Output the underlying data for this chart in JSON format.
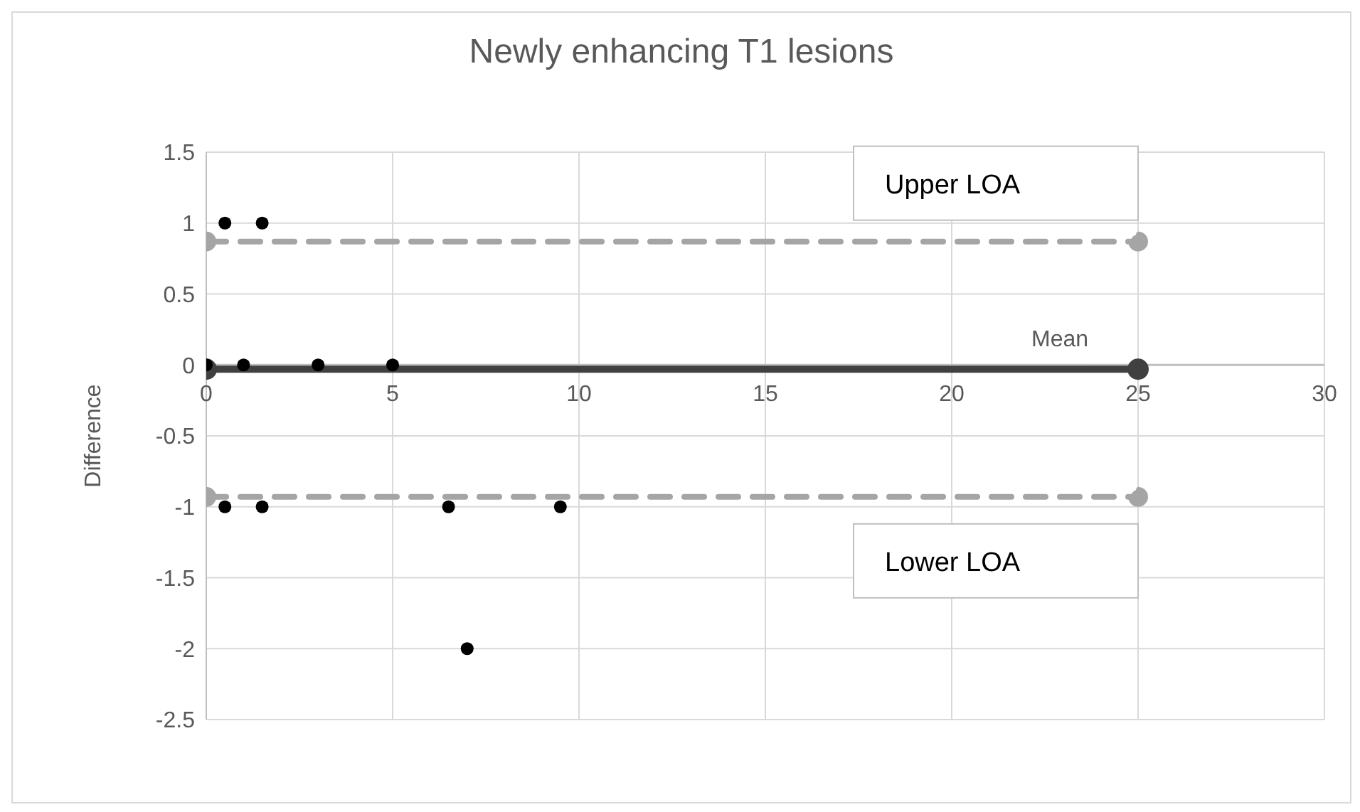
{
  "chart_data": {
    "type": "scatter",
    "title": "Newly enhancing T1 lesions",
    "ylabel": "Difference",
    "xlim": [
      0,
      30
    ],
    "xticks": [
      0,
      5,
      10,
      15,
      20,
      25,
      30
    ],
    "ylim": [
      -2.5,
      1.5
    ],
    "yticks": [
      1.5,
      1,
      0.5,
      0,
      -0.5,
      -1,
      -1.5,
      -2,
      -2.5
    ],
    "grid": true,
    "legend": false,
    "marker": "circle",
    "series": [
      {
        "color": "#000000",
        "x": [
          0.5,
          1.5,
          0,
          1,
          3,
          5,
          0.5,
          1.5,
          6.5,
          9.5,
          7
        ],
        "values": [
          1,
          1,
          0,
          0,
          0,
          0,
          -1,
          -1,
          -1,
          -1,
          -2
        ]
      },
      {
        "type": "line",
        "name": "Upper LOA",
        "color": "#a5a5a5",
        "line_style": "dashed",
        "x": [
          0,
          25
        ],
        "values": [
          0.87,
          0.87
        ]
      },
      {
        "type": "line",
        "name": "Mean",
        "color": "#404040",
        "line_style": "solid",
        "x": [
          0,
          25
        ],
        "values": [
          -0.03,
          -0.03
        ]
      },
      {
        "type": "line",
        "name": "Lower LOA",
        "color": "#a5a5a5",
        "line_style": "dashed",
        "x": [
          0,
          25
        ],
        "values": [
          -0.93,
          -0.93
        ]
      }
    ]
  }
}
